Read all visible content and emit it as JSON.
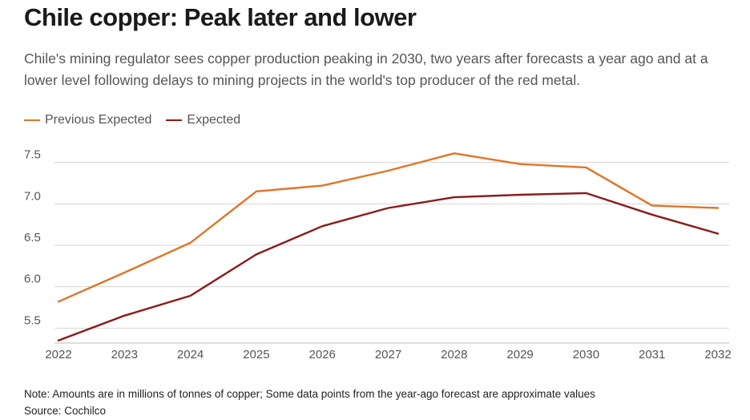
{
  "title": "Chile copper: Peak later and lower",
  "subtitle": "Chile's mining regulator sees copper production peaking in 2030, two years after forecasts a year ago and at a lower level following delays to mining projects in the world's top producer of the red metal.",
  "note": "Note: Amounts are in millions of tonnes of copper; Some data points from the year-ago forecast are approximate values",
  "source": "Source: Cochilco",
  "colors": {
    "previous": "#e07428",
    "expected": "#8b1a1a",
    "grid": "#d4d4d4",
    "text": "#555555"
  },
  "chart_data": {
    "type": "line",
    "x": [
      "2022",
      "2023",
      "2024",
      "2025",
      "2026",
      "2027",
      "2028",
      "2029",
      "2030",
      "2031",
      "2032"
    ],
    "series": [
      {
        "name": "Previous Expected",
        "values": [
          5.82,
          6.17,
          6.53,
          7.15,
          7.22,
          7.4,
          7.61,
          7.48,
          7.44,
          6.98,
          6.95
        ]
      },
      {
        "name": "Expected",
        "values": [
          5.35,
          5.65,
          5.89,
          6.39,
          6.73,
          6.95,
          7.08,
          7.11,
          7.13,
          6.87,
          6.64
        ]
      }
    ],
    "yticks": [
      5.5,
      6.0,
      6.5,
      7.0,
      7.5
    ],
    "ytick_labels": [
      "5.5",
      "6.0",
      "6.5",
      "7.0",
      "7.5"
    ],
    "ylim": [
      5.3,
      7.7
    ],
    "grid": true,
    "legend": "top-left",
    "xlabel": "",
    "ylabel": ""
  }
}
